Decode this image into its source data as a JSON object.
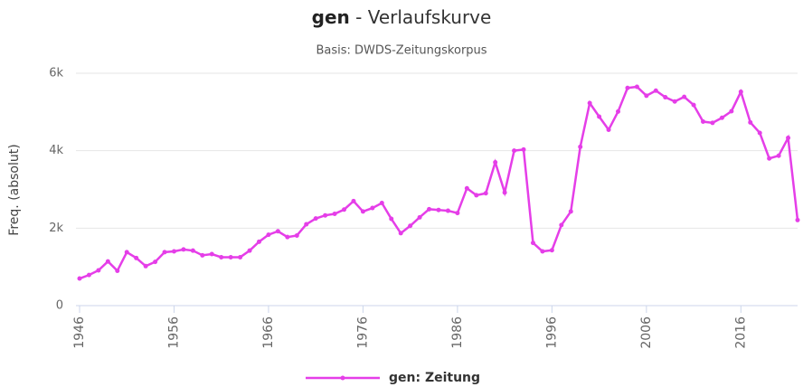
{
  "chart_data": {
    "type": "line",
    "title_term": "gen",
    "title": "- Verlaufskurve",
    "subtitle": "Basis: DWDS-Zeitungskorpus",
    "y_label": "Freq. (absolut)",
    "x": [
      1946,
      1947,
      1948,
      1949,
      1950,
      1951,
      1952,
      1953,
      1954,
      1955,
      1956,
      1957,
      1958,
      1959,
      1960,
      1961,
      1962,
      1963,
      1964,
      1965,
      1966,
      1967,
      1968,
      1969,
      1970,
      1971,
      1972,
      1973,
      1974,
      1975,
      1976,
      1977,
      1978,
      1979,
      1980,
      1981,
      1982,
      1983,
      1984,
      1985,
      1986,
      1987,
      1988,
      1989,
      1990,
      1991,
      1992,
      1993,
      1994,
      1995,
      1996,
      1997,
      1998,
      1999,
      2000,
      2001,
      2002,
      2003,
      2004,
      2005,
      2006,
      2007,
      2008,
      2009,
      2010,
      2011,
      2012,
      2013,
      2014,
      2015,
      2016,
      2017,
      2018,
      2019,
      2020,
      2021,
      2022
    ],
    "series": [
      {
        "name": "gen: Zeitung",
        "color": "#e53ee8",
        "values": [
          700,
          790,
          910,
          1140,
          900,
          1380,
          1230,
          1020,
          1130,
          1380,
          1400,
          1450,
          1420,
          1300,
          1330,
          1250,
          1250,
          1250,
          1420,
          1650,
          1830,
          1920,
          1770,
          1810,
          2100,
          2250,
          2330,
          2370,
          2480,
          2700,
          2430,
          2520,
          2650,
          2240,
          1870,
          2060,
          2280,
          2490,
          2470,
          2450,
          2390,
          3030,
          2850,
          2900,
          3700,
          2920,
          4000,
          4030,
          1620,
          1400,
          1430,
          2080,
          2430,
          4100,
          5230,
          4880,
          4540,
          5010,
          5620,
          5650,
          5420,
          5550,
          5380,
          5270,
          5390,
          5180,
          4750,
          4720,
          4850,
          5020,
          5520,
          4730,
          4460,
          3800,
          3870,
          4330,
          2210
        ]
      }
    ],
    "xlim": [
      1946,
      2022
    ],
    "xticks": [
      1946,
      1956,
      1966,
      1976,
      1986,
      1996,
      2006,
      2016
    ],
    "ylim": [
      0,
      6000
    ],
    "yticks": [
      0,
      {
        "value": 2000,
        "label": "2k"
      },
      {
        "value": 4000,
        "label": "4k"
      },
      {
        "value": 6000,
        "label": "6k"
      }
    ],
    "grid": true,
    "legend": "bottom"
  }
}
